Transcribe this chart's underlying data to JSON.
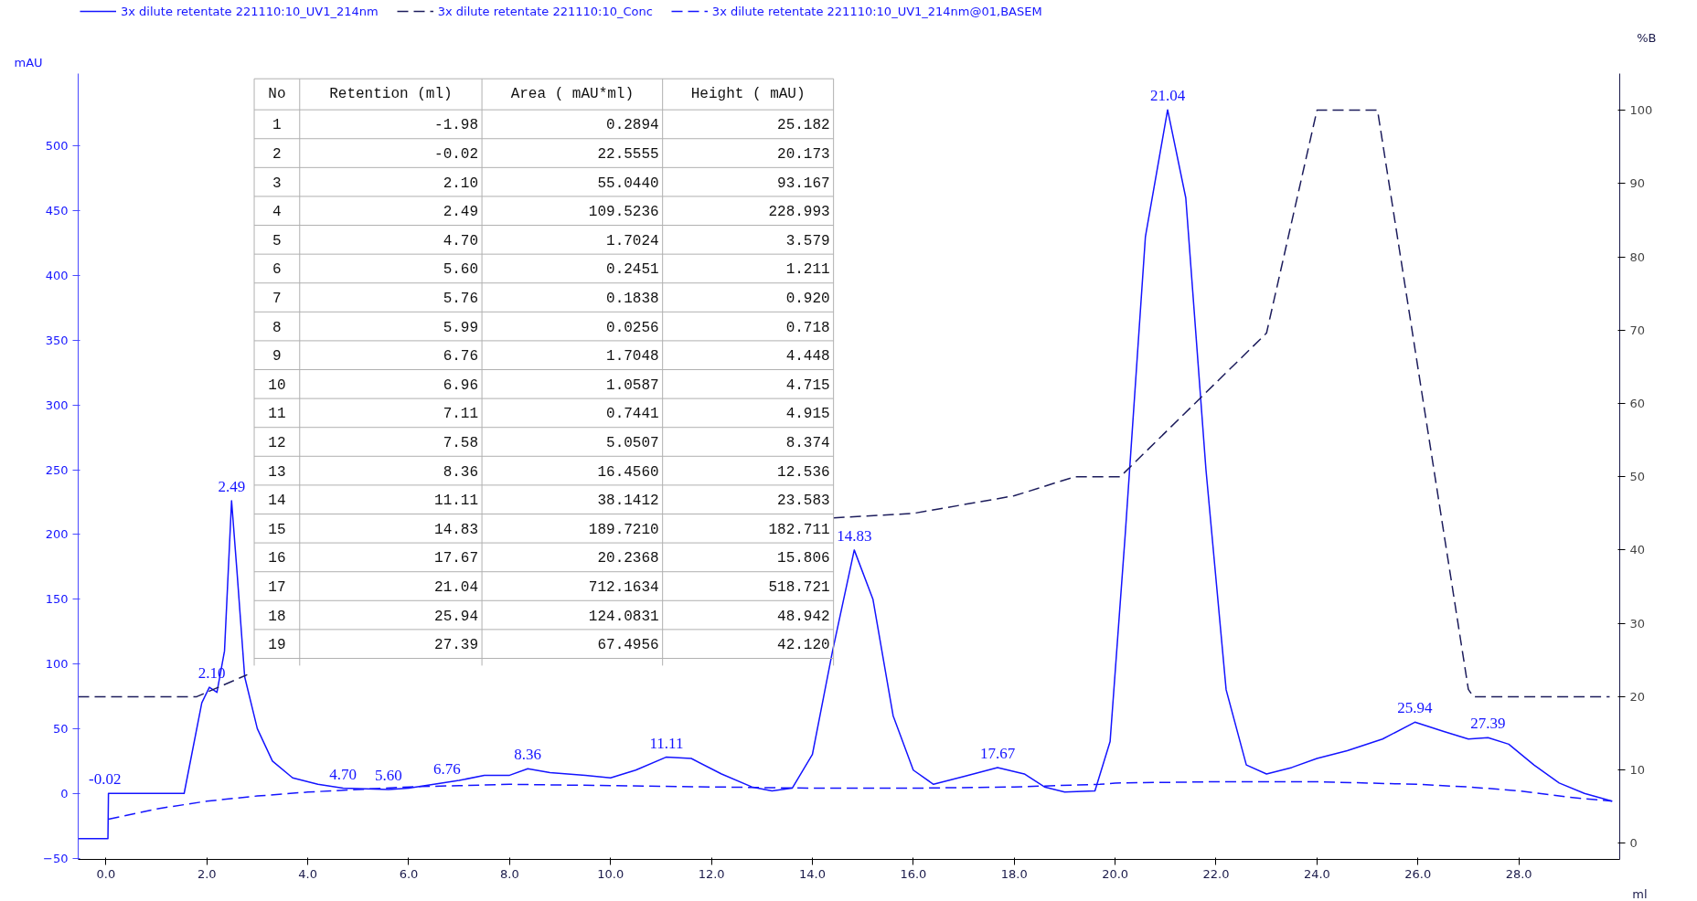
{
  "chart_data": {
    "type": "line",
    "xlabel": "ml",
    "ylabel": "mAU",
    "y2label": "%B",
    "xlim": [
      -0.55,
      30.0
    ],
    "ylim": [
      -51,
      556
    ],
    "y2lim": [
      -2.2,
      105
    ],
    "xticks": [
      {
        "value": 0,
        "label": "0.0"
      },
      {
        "value": 2,
        "label": "2.0"
      },
      {
        "value": 4,
        "label": "4.0"
      },
      {
        "value": 6,
        "label": "6.0"
      },
      {
        "value": 8,
        "label": "8.0"
      },
      {
        "value": 10,
        "label": "10.0"
      },
      {
        "value": 12,
        "label": "12.0"
      },
      {
        "value": 14,
        "label": "14.0"
      },
      {
        "value": 16,
        "label": "16.0"
      },
      {
        "value": 18,
        "label": "18.0"
      },
      {
        "value": 20,
        "label": "20.0"
      },
      {
        "value": 22,
        "label": "22.0"
      },
      {
        "value": 24,
        "label": "24.0"
      },
      {
        "value": 26,
        "label": "26.0"
      },
      {
        "value": 28,
        "label": "28.0"
      }
    ],
    "yticks": [
      -50,
      0,
      50,
      100,
      150,
      200,
      250,
      300,
      350,
      400,
      450,
      500
    ],
    "y2ticks": [
      0,
      10,
      20,
      30,
      40,
      50,
      60,
      70,
      80,
      90,
      100
    ],
    "grid": false,
    "legend": "top",
    "series": [
      {
        "name": "3x dilute retentate 221110:10_UV1_214nm",
        "line_style": "solid",
        "color": "#1414ff",
        "x": [
          -0.55,
          0.04,
          0.05,
          1.55,
          1.7,
          1.9,
          2.05,
          2.2,
          2.35,
          2.49,
          2.6,
          2.75,
          3.0,
          3.3,
          3.7,
          4.2,
          4.7,
          5.6,
          6.0,
          6.5,
          7.0,
          7.5,
          8.0,
          8.36,
          8.8,
          9.5,
          10.0,
          10.5,
          11.1,
          11.6,
          12.2,
          12.8,
          13.2,
          13.6,
          14.0,
          14.4,
          14.83,
          15.2,
          15.6,
          16.0,
          16.4,
          17.0,
          17.67,
          18.2,
          18.6,
          19.0,
          19.6,
          19.9,
          20.2,
          20.6,
          21.04,
          21.4,
          21.8,
          22.2,
          22.6,
          23.0,
          23.5,
          24.0,
          24.6,
          25.3,
          25.94,
          26.5,
          27.0,
          27.39,
          27.8,
          28.3,
          28.8,
          29.3,
          29.85
        ],
        "values": [
          -35,
          -35,
          0,
          0,
          30,
          70,
          82,
          78,
          110,
          226,
          170,
          90,
          50,
          25,
          12,
          7,
          4,
          3,
          4,
          7,
          10,
          14,
          14,
          19,
          16,
          14,
          12,
          18,
          28,
          27,
          15,
          5,
          2,
          4,
          30,
          110,
          188,
          150,
          60,
          18,
          7,
          13,
          20,
          15,
          5,
          1,
          2,
          40,
          200,
          430,
          528,
          460,
          250,
          80,
          22,
          15,
          20,
          27,
          33,
          42,
          55,
          48,
          42,
          43,
          38,
          22,
          8,
          0,
          -6
        ]
      },
      {
        "name": "3x dilute retentate 221110:10_Conc",
        "line_style": "dashed",
        "color": "#1c1c5c",
        "axis": "y2",
        "x": [
          -0.55,
          1.8,
          2.8,
          3.0,
          14.42,
          16.0,
          18.0,
          19.2,
          20.1,
          23.0,
          24.0,
          25.2,
          27.0,
          27.1,
          29.8
        ],
        "values": [
          20,
          20,
          23,
          null,
          44.4,
          45,
          47.4,
          50,
          50,
          69.6,
          100,
          100,
          21,
          20,
          20
        ]
      },
      {
        "name": "3x dilute retentate 221110:10_UV1_214nm@01,BASEM",
        "line_style": "dashed",
        "color": "#1414ff",
        "x": [
          0.05,
          1.0,
          2.0,
          3.0,
          4.0,
          5.0,
          6.0,
          7.0,
          8.0,
          10.0,
          12.0,
          14.0,
          16.0,
          18.0,
          19.7,
          20.0,
          22.0,
          24.0,
          26.0,
          27.0,
          28.0,
          29.0,
          29.85
        ],
        "values": [
          -20,
          -12,
          -6,
          -2,
          1,
          3,
          5,
          6,
          7,
          6,
          5,
          4,
          4,
          5,
          7,
          8,
          9,
          9,
          7,
          5,
          2,
          -3,
          -6
        ]
      }
    ],
    "annotations": [
      {
        "text": "-0.02",
        "x": -0.02,
        "y": 0
      },
      {
        "text": "2.10",
        "x": 2.1,
        "y": 82
      },
      {
        "text": "2.49",
        "x": 2.49,
        "y": 226
      },
      {
        "text": "4.70",
        "x": 4.7,
        "y": 4
      },
      {
        "text": "5.60",
        "x": 5.6,
        "y": 3
      },
      {
        "text": "6.76",
        "x": 6.76,
        "y": 8
      },
      {
        "text": "8.36",
        "x": 8.36,
        "y": 19
      },
      {
        "text": "11.11",
        "x": 11.11,
        "y": 28
      },
      {
        "text": "14.83",
        "x": 14.83,
        "y": 188
      },
      {
        "text": "17.67",
        "x": 17.67,
        "y": 20
      },
      {
        "text": "21.04",
        "x": 21.04,
        "y": 528
      },
      {
        "text": "25.94",
        "x": 25.94,
        "y": 55
      },
      {
        "text": "27.39",
        "x": 27.39,
        "y": 43
      },
      "No\tRetention (ml)\tArea ( mAU*ml)\tHeight ( mAU)",
      "1\t-1.98\t0.2894\t25.182",
      "2\t-0.02\t22.5555\t20.173",
      "3\t2.10\t55.0440\t93.167",
      "4\t2.49\t109.5236\t228.993",
      "5\t4.70\t1.7024\t3.579",
      "6\t5.60\t0.2451\t1.211",
      "7\t5.76\t0.1838\t0.920",
      "8\t5.99\t0.0256\t0.718",
      "9\t6.76\t1.7048\t4.448",
      "10\t6.96\t1.0587\t4.715",
      "11\t7.11\t0.7441\t4.915",
      "12\t7.58\t5.0507\t8.374",
      "13\t8.36\t16.4560\t12.536",
      "14\t11.11\t38.1412\t23.583",
      "15\t14.83\t189.7210\t182.711",
      "16\t17.67\t20.2368\t15.806",
      "17\t21.04\t712.1634\t518.721",
      "18\t25.94\t124.0831\t48.942",
      "19\t27.39\t67.4956\t42.120"
    ]
  }
}
